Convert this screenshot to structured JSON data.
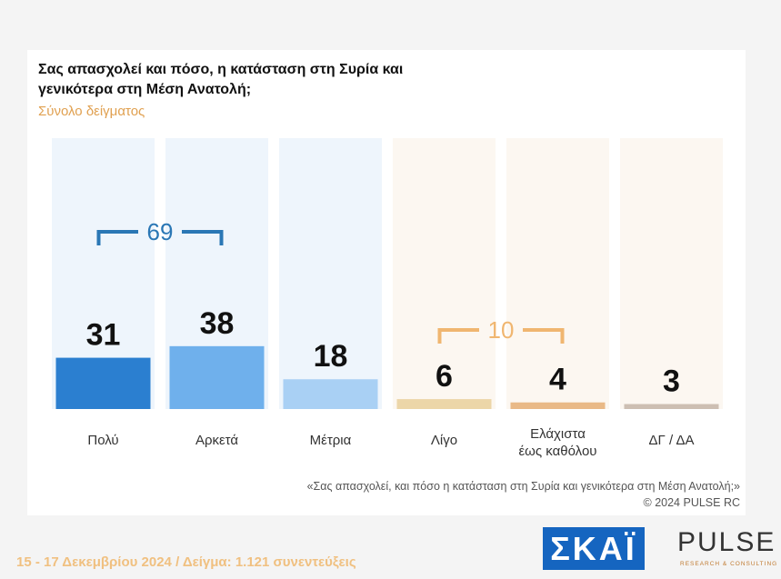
{
  "chart_data": {
    "type": "bar",
    "title": "Σας απασχολεί και πόσο, η κατάσταση στη Συρία και γενικότερα στη Μέση Ανατολή;",
    "subtitle": "Σύνολο δείγματος",
    "categories": [
      "Πολύ",
      "Αρκετά",
      "Μέτρια",
      "Λίγο",
      "Ελάχιστα έως καθόλου",
      "ΔΓ / ΔΑ"
    ],
    "values": [
      31,
      38,
      18,
      6,
      4,
      3
    ],
    "colors": [
      "#2b7fd0",
      "#6fb0ec",
      "#a9d0f4",
      "#ecd6a8",
      "#e9b987",
      "#cdbfb3"
    ],
    "brackets": [
      {
        "value": 69,
        "color": "#2a77b5"
      },
      {
        "value": 10,
        "color": "#f0b670"
      }
    ],
    "footnote": "«Σας απασχολεί, και πόσο η κατάσταση στη Συρία και γενικότερα στη Μέση Ανατολή;»",
    "copyright": "©  2024  PULSE RC"
  },
  "footer": {
    "text": "15 - 17 Δεκεμβρίου 2024  /  Δείγμα:  1.121 συνεντεύξεις",
    "logo_left": "ΣΚΑΪ",
    "logo_right": "PULSE",
    "logo_right_sub": "RESEARCH & CONSULTING"
  }
}
